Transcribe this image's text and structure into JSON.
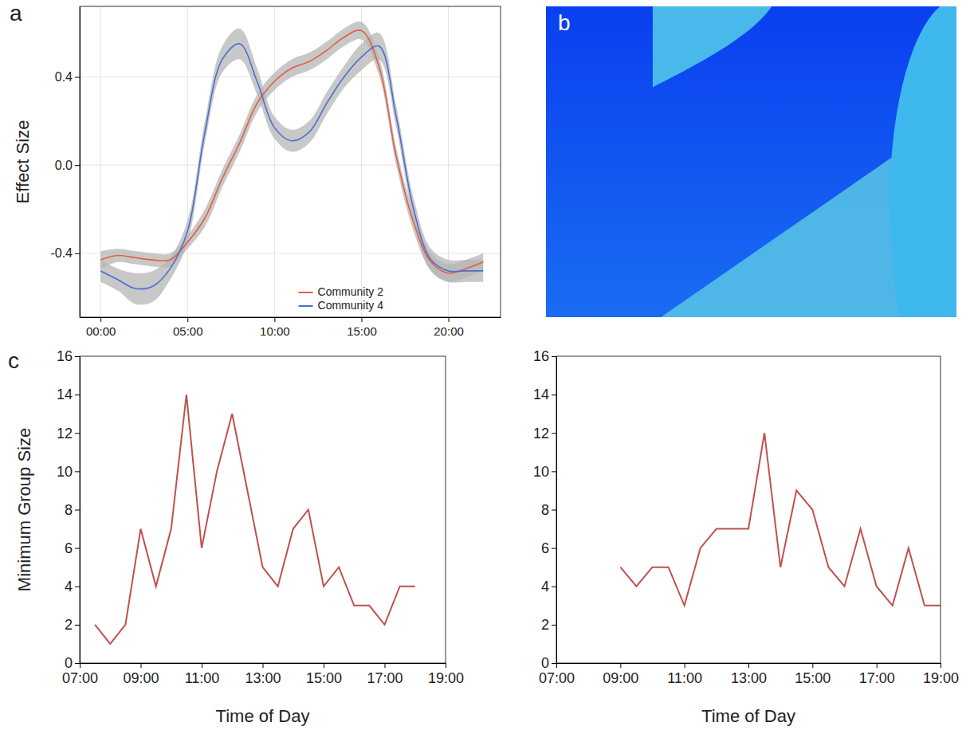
{
  "chart_data": [
    {
      "type": "line",
      "panel": "a",
      "y_label": "Effect Size",
      "x": [
        0,
        1,
        2,
        3,
        4,
        5,
        6,
        7,
        8,
        9,
        10,
        11,
        12,
        13,
        14,
        15,
        16,
        17,
        18,
        19,
        20,
        21,
        22
      ],
      "xlim": [
        -1.2,
        23.0
      ],
      "xticks": [
        {
          "value": 0,
          "label": "00:00"
        },
        {
          "value": 5,
          "label": "05:00"
        },
        {
          "value": 10,
          "label": "10:00"
        },
        {
          "value": 15,
          "label": "15:00"
        },
        {
          "value": 20,
          "label": "20:00"
        }
      ],
      "ylim": [
        -0.69,
        0.72
      ],
      "yticks": [
        -0.4,
        {
          "value": 0,
          "label": "0.0"
        },
        0.4
      ],
      "grid": true,
      "legend": "bottom",
      "series": [
        {
          "name": "Community 2",
          "color": "#e0603f",
          "line_style": "smooth",
          "values": [
            -0.43,
            -0.41,
            -0.42,
            -0.43,
            -0.43,
            -0.35,
            -0.24,
            -0.06,
            0.1,
            0.28,
            0.38,
            0.44,
            0.47,
            0.52,
            0.58,
            0.61,
            0.45,
            0.04,
            -0.26,
            -0.44,
            -0.49,
            -0.47,
            -0.44
          ],
          "error": [
            0.04,
            0.03,
            0.03,
            0.03,
            0.03,
            0.03,
            0.04,
            0.04,
            0.04,
            0.04,
            0.04,
            0.04,
            0.04,
            0.04,
            0.04,
            0.04,
            0.04,
            0.04,
            0.04,
            0.04,
            0.04,
            0.04,
            0.04
          ]
        },
        {
          "name": "Community 4",
          "color": "#4a6fd0",
          "line_style": "smooth",
          "values": [
            -0.48,
            -0.52,
            -0.56,
            -0.55,
            -0.47,
            -0.3,
            0.15,
            0.48,
            0.55,
            0.38,
            0.17,
            0.11,
            0.15,
            0.28,
            0.4,
            0.49,
            0.54,
            0.22,
            -0.2,
            -0.43,
            -0.48,
            -0.48,
            -0.48
          ],
          "error": [
            0.05,
            0.05,
            0.07,
            0.07,
            0.05,
            0.05,
            0.05,
            0.06,
            0.07,
            0.06,
            0.05,
            0.05,
            0.05,
            0.05,
            0.05,
            0.06,
            0.06,
            0.05,
            0.05,
            0.05,
            0.05,
            0.05,
            0.05
          ]
        }
      ]
    },
    {
      "type": "image",
      "panel": "b"
    },
    {
      "type": "line",
      "panel": "c",
      "y_label": "Minimum Group Size",
      "x_label": "Time of Day",
      "x": [
        7.5,
        8,
        8.5,
        9,
        9.5,
        10,
        10.5,
        11,
        11.5,
        12,
        12.5,
        13,
        13.5,
        14,
        14.5,
        15,
        15.5,
        16,
        16.5,
        17,
        17.5,
        18
      ],
      "xlim": [
        7,
        19
      ],
      "xticks": [
        {
          "value": 7,
          "label": "07:00"
        },
        {
          "value": 9,
          "label": "09:00"
        },
        {
          "value": 11,
          "label": "11:00"
        },
        {
          "value": 13,
          "label": "13:00"
        },
        {
          "value": 15,
          "label": "15:00"
        },
        {
          "value": 17,
          "label": "17:00"
        },
        {
          "value": 19,
          "label": "19:00"
        }
      ],
      "ylim": [
        0,
        16
      ],
      "yticks": [
        0,
        2,
        4,
        6,
        8,
        10,
        12,
        14,
        16
      ],
      "grid": false,
      "series": [
        {
          "color": "#c0504d",
          "line_style": "solid",
          "values": [
            2,
            1,
            2,
            7,
            4,
            7,
            14,
            6,
            10,
            13,
            9,
            5,
            4,
            7,
            8,
            4,
            5,
            3,
            3,
            2,
            4,
            4
          ]
        }
      ]
    },
    {
      "type": "line",
      "x_label": "Time of Day",
      "x": [
        9,
        9.5,
        10,
        10.5,
        11,
        11.5,
        12,
        12.5,
        13,
        13.5,
        14,
        14.5,
        15,
        15.5,
        16,
        16.5,
        17,
        17.5,
        18,
        18.5,
        19
      ],
      "xlim": [
        7,
        19
      ],
      "xticks": [
        {
          "value": 7,
          "label": "07:00"
        },
        {
          "value": 9,
          "label": "09:00"
        },
        {
          "value": 11,
          "label": "11:00"
        },
        {
          "value": 13,
          "label": "13:00"
        },
        {
          "value": 15,
          "label": "15:00"
        },
        {
          "value": 17,
          "label": "17:00"
        },
        {
          "value": 19,
          "label": "19:00"
        }
      ],
      "ylim": [
        0,
        16
      ],
      "yticks": [
        0,
        2,
        4,
        6,
        8,
        10,
        12,
        14,
        16
      ],
      "grid": false,
      "series": [
        {
          "color": "#c0504d",
          "line_style": "solid",
          "values": [
            5,
            4,
            5,
            5,
            3,
            6,
            7,
            7,
            7,
            12,
            5,
            9,
            8,
            5,
            4,
            7,
            4,
            3,
            6,
            3,
            3
          ]
        }
      ]
    }
  ]
}
